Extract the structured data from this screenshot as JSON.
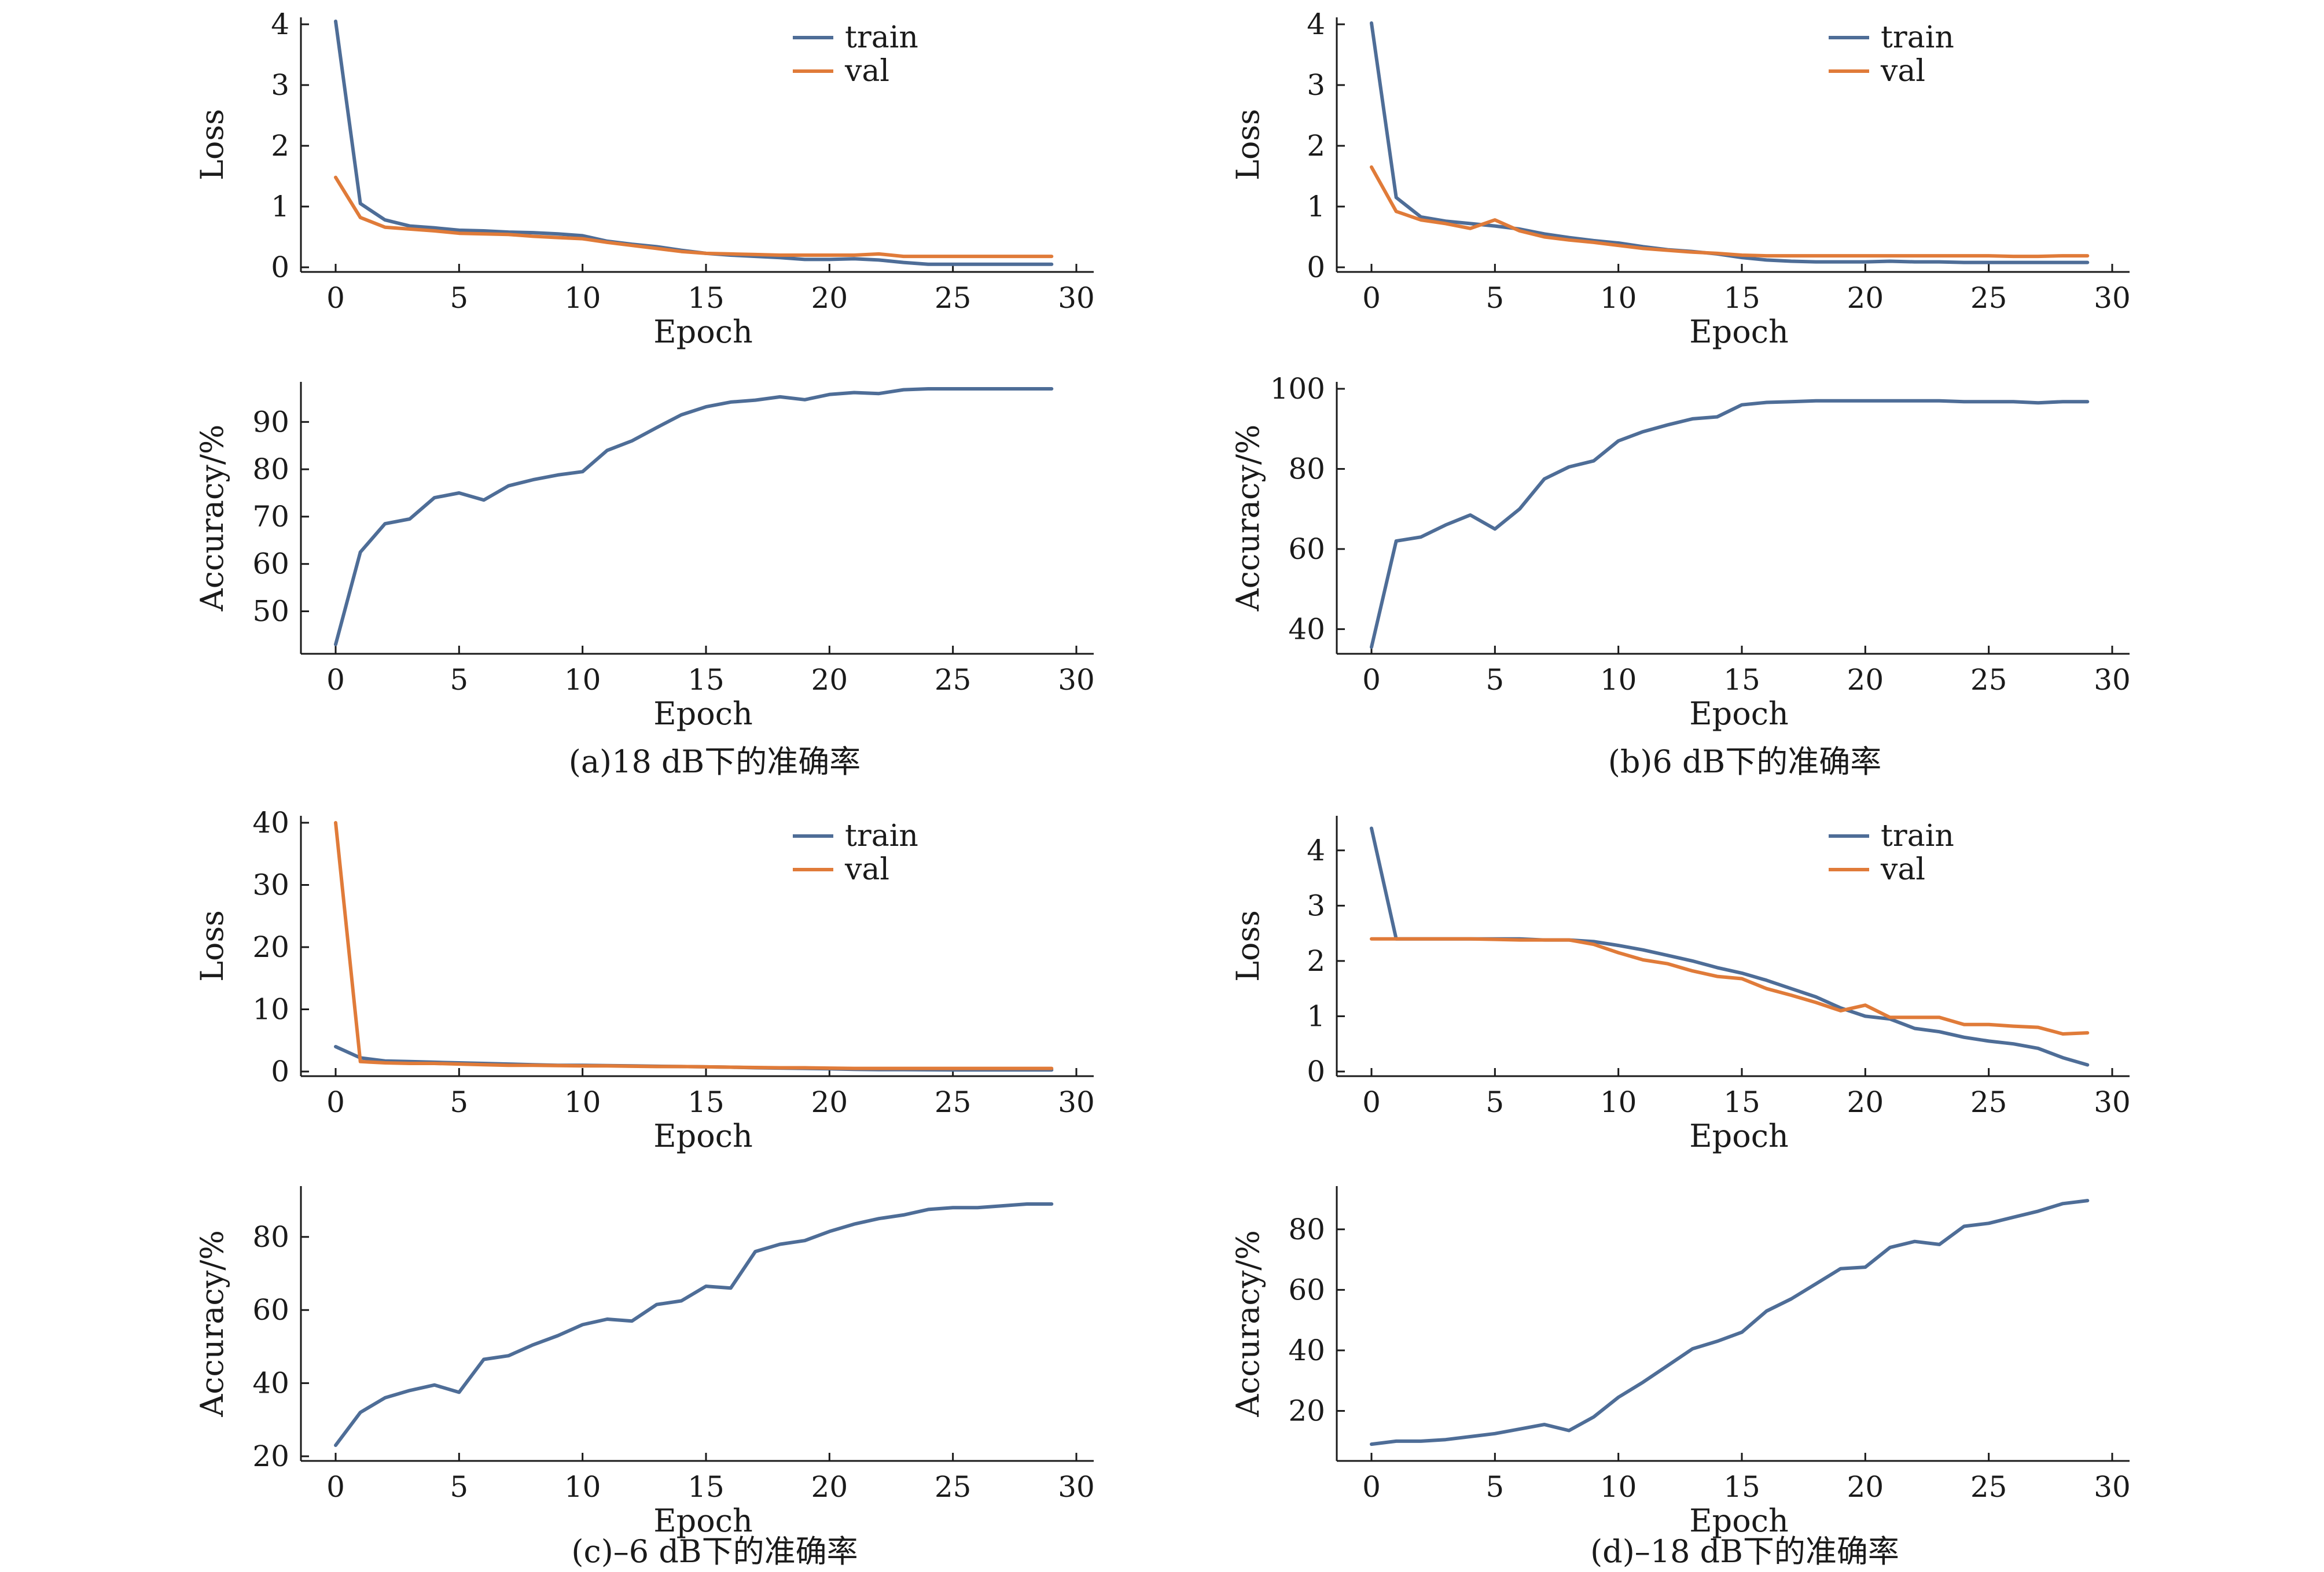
{
  "colors": {
    "train": "#4e6d97",
    "val": "#e07b39",
    "axis": "#1a1a1a"
  },
  "chart_data": [
    {
      "id": "a_loss",
      "type": "line",
      "xlabel": "Epoch",
      "ylabel": "Loss",
      "xlim": [
        0,
        30
      ],
      "ylim": [
        0,
        4
      ],
      "xticks": [
        0,
        5,
        10,
        15,
        20,
        25,
        30
      ],
      "yticks": [
        0,
        1,
        2,
        3,
        4
      ],
      "legend": "top-right",
      "series": [
        {
          "name": "train",
          "color": "#4e6d97",
          "x": [
            0,
            1,
            2,
            3,
            4,
            5,
            6,
            7,
            8,
            9,
            10,
            11,
            12,
            13,
            14,
            15,
            16,
            17,
            18,
            19,
            20,
            21,
            22,
            23,
            24,
            25,
            26,
            27,
            28,
            29
          ],
          "values": [
            4.05,
            1.05,
            0.78,
            0.68,
            0.65,
            0.61,
            0.6,
            0.58,
            0.57,
            0.55,
            0.52,
            0.43,
            0.38,
            0.34,
            0.28,
            0.23,
            0.2,
            0.18,
            0.16,
            0.13,
            0.13,
            0.14,
            0.12,
            0.08,
            0.05,
            0.05,
            0.05,
            0.05,
            0.05,
            0.05
          ]
        },
        {
          "name": "val",
          "color": "#e07b39",
          "x": [
            0,
            1,
            2,
            3,
            4,
            5,
            6,
            7,
            8,
            9,
            10,
            11,
            12,
            13,
            14,
            15,
            16,
            17,
            18,
            19,
            20,
            21,
            22,
            23,
            24,
            25,
            26,
            27,
            28,
            29
          ],
          "values": [
            1.48,
            0.82,
            0.66,
            0.63,
            0.6,
            0.56,
            0.55,
            0.54,
            0.51,
            0.49,
            0.47,
            0.41,
            0.36,
            0.31,
            0.26,
            0.23,
            0.22,
            0.21,
            0.2,
            0.2,
            0.2,
            0.2,
            0.22,
            0.18,
            0.18,
            0.18,
            0.18,
            0.18,
            0.18,
            0.18
          ]
        }
      ]
    },
    {
      "id": "a_acc",
      "type": "line",
      "xlabel": "Epoch",
      "ylabel": "Accuracy/%",
      "xlim": [
        0,
        30
      ],
      "ylim": [
        42,
        97
      ],
      "xticks": [
        0,
        5,
        10,
        15,
        20,
        25,
        30
      ],
      "yticks": [
        50,
        60,
        70,
        80,
        90
      ],
      "series": [
        {
          "name": "",
          "color": "#4e6d97",
          "x": [
            0,
            1,
            2,
            3,
            4,
            5,
            6,
            7,
            8,
            9,
            10,
            11,
            12,
            13,
            14,
            15,
            16,
            17,
            18,
            19,
            20,
            21,
            22,
            23,
            24,
            25,
            26,
            27,
            28,
            29
          ],
          "values": [
            43,
            62.5,
            68.5,
            69.5,
            74,
            75,
            73.5,
            76.5,
            77.8,
            78.8,
            79.5,
            84,
            86,
            88.8,
            91.5,
            93.2,
            94.2,
            94.6,
            95.3,
            94.7,
            95.8,
            96.2,
            96,
            96.8,
            97,
            97,
            97,
            97,
            97,
            97
          ]
        }
      ]
    },
    {
      "id": "b_loss",
      "type": "line",
      "xlabel": "Epoch",
      "ylabel": "Loss",
      "xlim": [
        0,
        30
      ],
      "ylim": [
        0,
        4
      ],
      "xticks": [
        0,
        5,
        10,
        15,
        20,
        25,
        30
      ],
      "yticks": [
        0,
        1,
        2,
        3,
        4
      ],
      "legend": "top-right",
      "series": [
        {
          "name": "train",
          "color": "#4e6d97",
          "x": [
            0,
            1,
            2,
            3,
            4,
            5,
            6,
            7,
            8,
            9,
            10,
            11,
            12,
            13,
            14,
            15,
            16,
            17,
            18,
            19,
            20,
            21,
            22,
            23,
            24,
            25,
            26,
            27,
            28,
            29
          ],
          "values": [
            4.02,
            1.15,
            0.83,
            0.76,
            0.72,
            0.68,
            0.63,
            0.55,
            0.49,
            0.44,
            0.4,
            0.34,
            0.29,
            0.26,
            0.22,
            0.16,
            0.12,
            0.1,
            0.09,
            0.09,
            0.09,
            0.1,
            0.09,
            0.09,
            0.08,
            0.08,
            0.08,
            0.08,
            0.08,
            0.08
          ]
        },
        {
          "name": "val",
          "color": "#e07b39",
          "x": [
            0,
            1,
            2,
            3,
            4,
            5,
            6,
            7,
            8,
            9,
            10,
            11,
            12,
            13,
            14,
            15,
            16,
            17,
            18,
            19,
            20,
            21,
            22,
            23,
            24,
            25,
            26,
            27,
            28,
            29
          ],
          "values": [
            1.65,
            0.92,
            0.78,
            0.72,
            0.64,
            0.78,
            0.6,
            0.5,
            0.45,
            0.41,
            0.36,
            0.31,
            0.28,
            0.25,
            0.23,
            0.2,
            0.19,
            0.19,
            0.19,
            0.19,
            0.19,
            0.19,
            0.19,
            0.19,
            0.19,
            0.19,
            0.18,
            0.18,
            0.19,
            0.19
          ]
        }
      ]
    },
    {
      "id": "b_acc",
      "type": "line",
      "xlabel": "Epoch",
      "ylabel": "Accuracy/%",
      "xlim": [
        0,
        30
      ],
      "ylim": [
        35,
        100
      ],
      "xticks": [
        0,
        5,
        10,
        15,
        20,
        25,
        30
      ],
      "yticks": [
        40,
        60,
        80,
        100
      ],
      "series": [
        {
          "name": "",
          "color": "#4e6d97",
          "x": [
            0,
            1,
            2,
            3,
            4,
            5,
            6,
            7,
            8,
            9,
            10,
            11,
            12,
            13,
            14,
            15,
            16,
            17,
            18,
            19,
            20,
            21,
            22,
            23,
            24,
            25,
            26,
            27,
            28,
            29
          ],
          "values": [
            35.5,
            62,
            63,
            66,
            68.5,
            65,
            70,
            77.5,
            80.5,
            82,
            87,
            89.3,
            91,
            92.5,
            93,
            96,
            96.6,
            96.8,
            97,
            97,
            97,
            97,
            97,
            97,
            96.8,
            96.8,
            96.8,
            96.5,
            96.8,
            96.8
          ]
        }
      ]
    },
    {
      "id": "c_loss",
      "type": "line",
      "xlabel": "Epoch",
      "ylabel": "Loss",
      "xlim": [
        0,
        30
      ],
      "ylim": [
        0,
        40
      ],
      "xticks": [
        0,
        5,
        10,
        15,
        20,
        25,
        30
      ],
      "yticks": [
        0,
        10,
        20,
        30,
        40
      ],
      "legend": "top-right",
      "series": [
        {
          "name": "train",
          "color": "#4e6d97",
          "x": [
            0,
            1,
            2,
            3,
            4,
            5,
            6,
            7,
            8,
            9,
            10,
            11,
            12,
            13,
            14,
            15,
            16,
            17,
            18,
            19,
            20,
            21,
            22,
            23,
            24,
            25,
            26,
            27,
            28,
            29
          ],
          "values": [
            4.0,
            2.2,
            1.7,
            1.6,
            1.5,
            1.4,
            1.3,
            1.2,
            1.1,
            1.0,
            1.0,
            0.95,
            0.9,
            0.85,
            0.8,
            0.75,
            0.7,
            0.6,
            0.55,
            0.5,
            0.45,
            0.35,
            0.3,
            0.3,
            0.28,
            0.25,
            0.25,
            0.25,
            0.25,
            0.25
          ]
        },
        {
          "name": "val",
          "color": "#e07b39",
          "x": [
            0,
            1,
            2,
            3,
            4,
            5,
            6,
            7,
            8,
            9,
            10,
            11,
            12,
            13,
            14,
            15,
            16,
            17,
            18,
            19,
            20,
            21,
            22,
            23,
            24,
            25,
            26,
            27,
            28,
            29
          ],
          "values": [
            40,
            1.6,
            1.4,
            1.3,
            1.3,
            1.2,
            1.1,
            1.0,
            1.0,
            0.95,
            0.9,
            0.9,
            0.85,
            0.8,
            0.8,
            0.75,
            0.7,
            0.65,
            0.6,
            0.6,
            0.55,
            0.5,
            0.5,
            0.5,
            0.5,
            0.5,
            0.5,
            0.5,
            0.5,
            0.5
          ]
        }
      ]
    },
    {
      "id": "c_acc",
      "type": "line",
      "xlabel": "Epoch",
      "ylabel": "Accuracy/%",
      "xlim": [
        0,
        30
      ],
      "ylim": [
        20,
        92
      ],
      "xticks": [
        0,
        5,
        10,
        15,
        20,
        25,
        30
      ],
      "yticks": [
        20,
        40,
        60,
        80
      ],
      "series": [
        {
          "name": "",
          "color": "#4e6d97",
          "x": [
            0,
            1,
            2,
            3,
            4,
            5,
            6,
            7,
            8,
            9,
            10,
            11,
            12,
            13,
            14,
            15,
            16,
            17,
            18,
            19,
            20,
            21,
            22,
            23,
            24,
            25,
            26,
            27,
            28,
            29
          ],
          "values": [
            23,
            32,
            36,
            38,
            39.5,
            37.5,
            46.5,
            47.5,
            50.5,
            53,
            56,
            57.5,
            57,
            61.5,
            62.5,
            66.5,
            66,
            76,
            78,
            79,
            81.5,
            83.5,
            85,
            86,
            87.5,
            88,
            88,
            88.5,
            89,
            89
          ]
        }
      ]
    },
    {
      "id": "d_loss",
      "type": "line",
      "xlabel": "Epoch",
      "ylabel": "Loss",
      "xlim": [
        0,
        30
      ],
      "ylim": [
        0,
        4.5
      ],
      "xticks": [
        0,
        5,
        10,
        15,
        20,
        25,
        30
      ],
      "yticks": [
        0,
        1,
        2,
        3,
        4
      ],
      "legend": "top-right",
      "series": [
        {
          "name": "train",
          "color": "#4e6d97",
          "x": [
            0,
            1,
            2,
            3,
            4,
            5,
            6,
            7,
            8,
            9,
            10,
            11,
            12,
            13,
            14,
            15,
            16,
            17,
            18,
            19,
            20,
            21,
            22,
            23,
            24,
            25,
            26,
            27,
            28,
            29
          ],
          "values": [
            4.4,
            2.4,
            2.4,
            2.4,
            2.4,
            2.4,
            2.4,
            2.38,
            2.38,
            2.35,
            2.28,
            2.2,
            2.1,
            2.0,
            1.88,
            1.78,
            1.65,
            1.5,
            1.35,
            1.15,
            1.0,
            0.95,
            0.78,
            0.72,
            0.62,
            0.55,
            0.5,
            0.42,
            0.25,
            0.12
          ]
        },
        {
          "name": "val",
          "color": "#e07b39",
          "x": [
            0,
            1,
            2,
            3,
            4,
            5,
            6,
            7,
            8,
            9,
            10,
            11,
            12,
            13,
            14,
            15,
            16,
            17,
            18,
            19,
            20,
            21,
            22,
            23,
            24,
            25,
            26,
            27,
            28,
            29
          ],
          "values": [
            2.4,
            2.4,
            2.4,
            2.4,
            2.4,
            2.39,
            2.38,
            2.38,
            2.38,
            2.3,
            2.15,
            2.02,
            1.95,
            1.82,
            1.72,
            1.68,
            1.5,
            1.38,
            1.25,
            1.1,
            1.2,
            0.98,
            0.98,
            0.98,
            0.85,
            0.85,
            0.82,
            0.8,
            0.68,
            0.7
          ]
        }
      ]
    },
    {
      "id": "d_acc",
      "type": "line",
      "xlabel": "Epoch",
      "ylabel": "Accuracy/%",
      "xlim": [
        0,
        30
      ],
      "ylim": [
        5,
        92
      ],
      "xticks": [
        0,
        5,
        10,
        15,
        20,
        25,
        30
      ],
      "yticks": [
        20,
        40,
        60,
        80
      ],
      "series": [
        {
          "name": "",
          "color": "#4e6d97",
          "x": [
            0,
            1,
            2,
            3,
            4,
            5,
            6,
            7,
            8,
            9,
            10,
            11,
            12,
            13,
            14,
            15,
            16,
            17,
            18,
            19,
            20,
            21,
            22,
            23,
            24,
            25,
            26,
            27,
            28,
            29
          ],
          "values": [
            9,
            10,
            10,
            10.5,
            11.5,
            12.5,
            14,
            15.5,
            13.5,
            18,
            24.5,
            29.5,
            35,
            40.5,
            43,
            46,
            53,
            57,
            62,
            67,
            67.5,
            74,
            76,
            75,
            81,
            82,
            84,
            86,
            88.5,
            89.5
          ]
        }
      ]
    }
  ],
  "captions": {
    "a": "(a)18 dB下的准确率",
    "b": "(b)6 dB下的准确率",
    "c": "(c)–6 dB下的准确率",
    "d": "(d)–18 dB下的准确率"
  }
}
